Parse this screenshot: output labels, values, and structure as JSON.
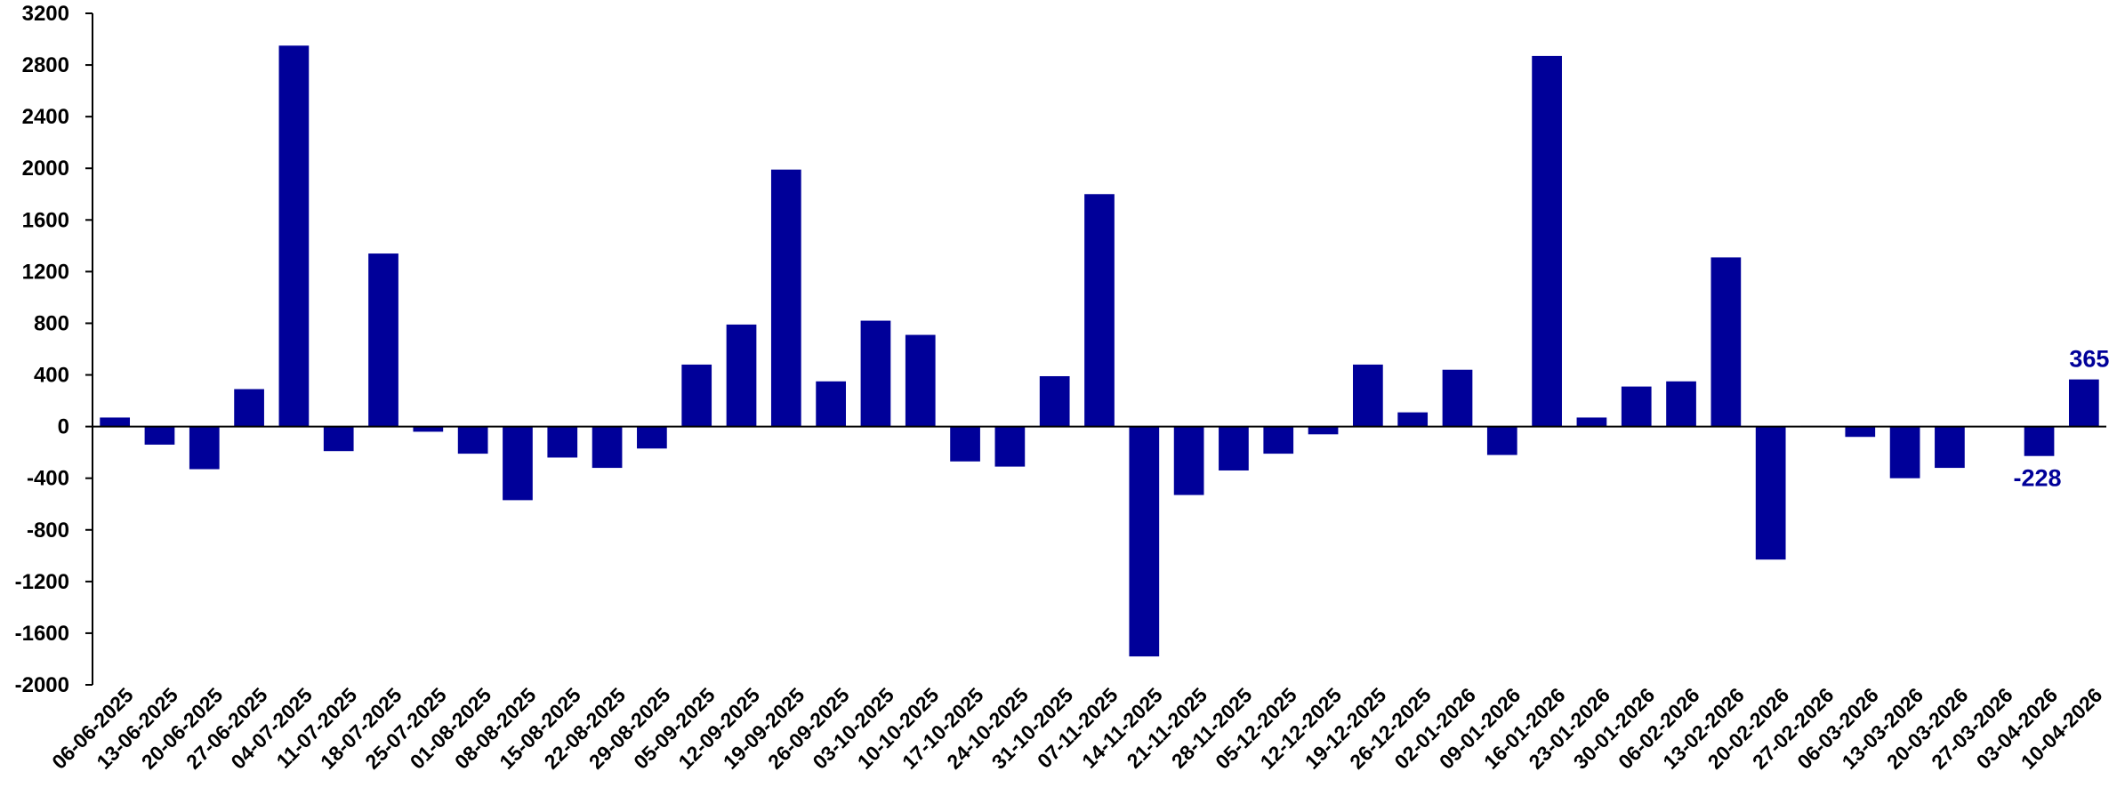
{
  "chart_data": {
    "type": "bar",
    "title": "",
    "xlabel": "",
    "ylabel": "",
    "ylim": [
      -2000,
      3200
    ],
    "yticks": [
      -2000,
      -1600,
      -1200,
      -800,
      -400,
      0,
      400,
      800,
      1200,
      1600,
      2000,
      2400,
      2800,
      3200
    ],
    "grid": false,
    "legend": "none",
    "bar_color": "#000099",
    "categories": [
      "06-06-2025",
      "13-06-2025",
      "20-06-2025",
      "27-06-2025",
      "04-07-2025",
      "11-07-2025",
      "18-07-2025",
      "25-07-2025",
      "01-08-2025",
      "08-08-2025",
      "15-08-2025",
      "22-08-2025",
      "29-08-2025",
      "05-09-2025",
      "12-09-2025",
      "19-09-2025",
      "26-09-2025",
      "03-10-2025",
      "10-10-2025",
      "17-10-2025",
      "24-10-2025",
      "31-10-2025",
      "07-11-2025",
      "14-11-2025",
      "21-11-2025",
      "28-11-2025",
      "05-12-2025",
      "12-12-2025",
      "19-12-2025",
      "26-12-2025",
      "02-01-2026",
      "09-01-2026",
      "16-01-2026",
      "23-01-2026",
      "30-01-2026",
      "06-02-2026",
      "13-02-2026",
      "20-02-2026",
      "27-02-2026",
      "06-03-2026",
      "13-03-2026",
      "20-03-2026",
      "27-03-2026",
      "03-04-2026",
      "10-04-2026"
    ],
    "values": [
      70,
      -140,
      -330,
      290,
      2950,
      -190,
      1340,
      -40,
      -210,
      -570,
      -240,
      -320,
      -170,
      480,
      790,
      1990,
      350,
      820,
      710,
      -270,
      -310,
      390,
      1800,
      -1780,
      -530,
      -340,
      -210,
      -60,
      480,
      110,
      440,
      -220,
      2870,
      70,
      310,
      350,
      1310,
      -1030,
      5,
      -80,
      -400,
      -320,
      -5,
      -228,
      365
    ],
    "data_labels": [
      {
        "index": 43,
        "text": "-228"
      },
      {
        "index": 44,
        "text": "365"
      }
    ]
  }
}
